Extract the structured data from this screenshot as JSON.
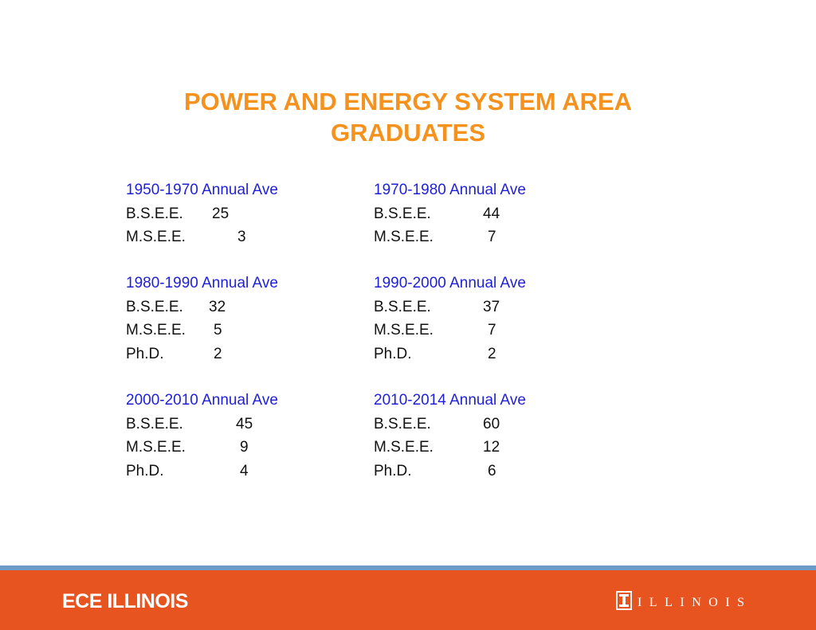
{
  "title": {
    "line1": "POWER AND ENERGY SYSTEM AREA",
    "line2": "GRADUATES"
  },
  "periods": [
    {
      "header": "1950-1970 Annual Ave",
      "rows": [
        {
          "degree": "B.S.E.E.",
          "count": "25"
        },
        {
          "degree": "M.S.E.E.",
          "count": "3"
        }
      ]
    },
    {
      "header": "1970-1980 Annual Ave",
      "rows": [
        {
          "degree": "B.S.E.E.",
          "count": "44"
        },
        {
          "degree": "M.S.E.E.",
          "count": "7"
        }
      ]
    },
    {
      "header": "1980-1990 Annual Ave",
      "rows": [
        {
          "degree": "B.S.E.E.",
          "count": "32"
        },
        {
          "degree": "M.S.E.E.",
          "count": "5"
        },
        {
          "degree": "Ph.D.",
          "count": "2"
        }
      ]
    },
    {
      "header": "1990-2000 Annual Ave",
      "rows": [
        {
          "degree": "B.S.E.E.",
          "count": "37"
        },
        {
          "degree": "M.S.E.E.",
          "count": "7"
        },
        {
          "degree": "Ph.D.",
          "count": "2"
        }
      ]
    },
    {
      "header": "2000-2010 Annual Ave",
      "rows": [
        {
          "degree": "B.S.E.E.",
          "count": "45"
        },
        {
          "degree": "M.S.E.E.",
          "count": "9"
        },
        {
          "degree": "Ph.D.",
          "count": "4"
        }
      ]
    },
    {
      "header": "2010-2014 Annual Ave",
      "rows": [
        {
          "degree": "B.S.E.E.",
          "count": "60"
        },
        {
          "degree": "M.S.E.E.",
          "count": "12"
        },
        {
          "degree": "Ph.D.",
          "count": "6"
        }
      ]
    }
  ],
  "footer": {
    "left_brand": "ECE ILLINOIS",
    "right_brand": "ILLINOIS",
    "logo_icon": "illinois-block-i-icon"
  },
  "colors": {
    "title": "#f5921e",
    "period_header": "#1f1fd6",
    "footer_bg": "#e8541f",
    "footer_stripe": "#6d9ac7"
  }
}
